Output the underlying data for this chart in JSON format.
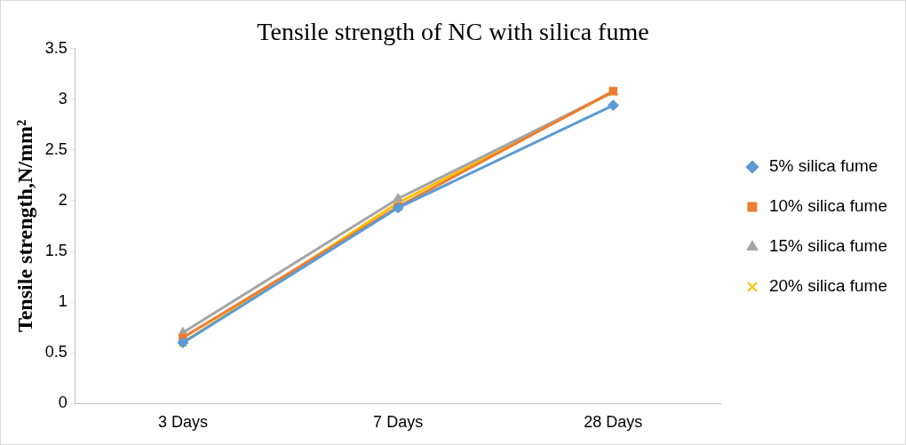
{
  "chart_data": {
    "type": "line",
    "title": "Tensile strength of NC with silica fume",
    "ylabel": "Tensile strength,N/mm²",
    "categories": [
      "3 Days",
      "7 Days",
      "28 Days"
    ],
    "series": [
      {
        "name": "5% silica fume",
        "color": "#5b9bd5",
        "marker": "diamond",
        "values": [
          0.6,
          1.93,
          2.94
        ]
      },
      {
        "name": "10% silica fume",
        "color": "#ed7d31",
        "marker": "square",
        "values": [
          0.65,
          1.94,
          3.08
        ]
      },
      {
        "name": "15% silica fume",
        "color": "#a5a5a5",
        "marker": "triangle",
        "values": [
          0.7,
          2.02,
          3.07
        ]
      },
      {
        "name": "20% silica fume",
        "color": "#ffc000",
        "marker": "cross",
        "values": [
          0.6,
          1.98,
          3.07
        ]
      }
    ],
    "ylim": [
      0,
      3.5
    ],
    "yticks": [
      0,
      0.5,
      1,
      1.5,
      2,
      2.5,
      3,
      3.5
    ],
    "grid": false,
    "legend": "right"
  }
}
